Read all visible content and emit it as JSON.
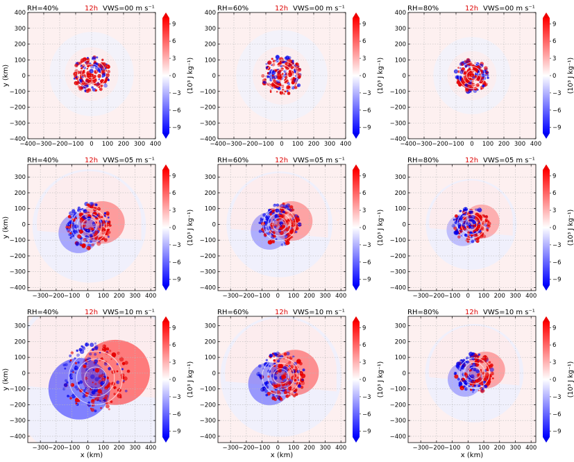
{
  "colors": {
    "header_time": "#dd0000",
    "text": "#000000",
    "grid": "#b8b8b8",
    "cmap_neg": "#0000ff",
    "cmap_mid": "#ffffff",
    "cmap_pos": "#ff0000",
    "bg_pos": "#fdf0f0",
    "bg_neg": "#eef0fc"
  },
  "figure": {
    "time_label": "12h",
    "xlabel": "x (km)",
    "ylabel": "y (km)",
    "colorbar_label": "(10³ J kg⁻¹)",
    "colorbar_ticks": [
      "9",
      "6",
      "3",
      "0",
      "−3",
      "−6",
      "−9"
    ]
  },
  "chart_data": [
    {
      "type": "heatmap",
      "row": 0,
      "col": 0,
      "rh": "RH=40%",
      "vws": "VWS=00 m s⁻¹",
      "xlim": [
        -400,
        400
      ],
      "ylim": [
        -400,
        400
      ],
      "xticks": [
        -400,
        -300,
        -200,
        -100,
        0,
        100,
        200,
        300,
        400
      ],
      "yticks": [
        -400,
        -300,
        -200,
        -100,
        0,
        100,
        200,
        300,
        400
      ],
      "core_radius_km": 120,
      "core_offset_km": [
        0,
        10
      ],
      "asym": 0,
      "background": "pos",
      "colorbar_range": [
        -10,
        10
      ]
    },
    {
      "type": "heatmap",
      "row": 0,
      "col": 1,
      "rh": "RH=60%",
      "vws": "VWS=00 m s⁻¹",
      "xlim": [
        -400,
        400
      ],
      "ylim": [
        -400,
        400
      ],
      "xticks": [
        -400,
        -300,
        -200,
        -100,
        0,
        100,
        200,
        300,
        400
      ],
      "yticks": [
        -400,
        -300,
        -200,
        -100,
        0,
        100,
        200,
        300,
        400
      ],
      "core_radius_km": 130,
      "core_offset_km": [
        0,
        0
      ],
      "asym": 0,
      "background": "pos",
      "colorbar_range": [
        -10,
        10
      ]
    },
    {
      "type": "heatmap",
      "row": 0,
      "col": 2,
      "rh": "RH=80%",
      "vws": "VWS=00 m s⁻¹",
      "xlim": [
        -400,
        400
      ],
      "ylim": [
        -400,
        400
      ],
      "xticks": [
        -400,
        -300,
        -200,
        -100,
        0,
        100,
        200,
        300,
        400
      ],
      "yticks": [
        -400,
        -300,
        -200,
        -100,
        0,
        100,
        200,
        300,
        400
      ],
      "core_radius_km": 110,
      "core_offset_km": [
        0,
        0
      ],
      "asym": 0,
      "background": "pos",
      "colorbar_range": [
        -10,
        10
      ]
    },
    {
      "type": "heatmap",
      "row": 1,
      "col": 0,
      "rh": "RH=40%",
      "vws": "VWS=05 m s⁻¹",
      "xlim": [
        -380,
        430
      ],
      "ylim": [
        -420,
        380
      ],
      "xticks": [
        -300,
        -200,
        -100,
        0,
        100,
        200,
        300,
        400
      ],
      "yticks": [
        -400,
        -300,
        -200,
        -100,
        0,
        100,
        200,
        300
      ],
      "core_radius_km": 150,
      "core_offset_km": [
        10,
        -10
      ],
      "asym": 0.5,
      "background": "mixed",
      "colorbar_range": [
        -10,
        10
      ]
    },
    {
      "type": "heatmap",
      "row": 1,
      "col": 1,
      "rh": "RH=60%",
      "vws": "VWS=05 m s⁻¹",
      "xlim": [
        -380,
        430
      ],
      "ylim": [
        -420,
        380
      ],
      "xticks": [
        -300,
        -200,
        -100,
        0,
        100,
        200,
        300,
        400
      ],
      "yticks": [
        -400,
        -300,
        -200,
        -100,
        0,
        100,
        200,
        300
      ],
      "core_radius_km": 140,
      "core_offset_km": [
        10,
        0
      ],
      "asym": 0.4,
      "background": "mixed",
      "colorbar_range": [
        -10,
        10
      ]
    },
    {
      "type": "heatmap",
      "row": 1,
      "col": 2,
      "rh": "RH=80%",
      "vws": "VWS=05 m s⁻¹",
      "xlim": [
        -380,
        430
      ],
      "ylim": [
        -420,
        380
      ],
      "xticks": [
        -300,
        -200,
        -100,
        0,
        100,
        200,
        300,
        400
      ],
      "yticks": [
        -400,
        -300,
        -200,
        -100,
        0,
        100,
        200,
        300
      ],
      "core_radius_km": 120,
      "core_offset_km": [
        20,
        0
      ],
      "asym": 0.2,
      "background": "mixed",
      "colorbar_range": [
        -10,
        10
      ]
    },
    {
      "type": "heatmap",
      "row": 2,
      "col": 0,
      "rh": "RH=40%",
      "vws": "VWS=10 m s⁻¹",
      "xlim": [
        -380,
        430
      ],
      "ylim": [
        -440,
        360
      ],
      "xticks": [
        -300,
        -200,
        -100,
        0,
        100,
        200,
        300,
        400
      ],
      "yticks": [
        -400,
        -300,
        -200,
        -100,
        0,
        100,
        200,
        300
      ],
      "core_radius_km": 230,
      "core_offset_km": [
        50,
        -30
      ],
      "asym": 1,
      "background": "mixed",
      "colorbar_range": [
        -10,
        10
      ]
    },
    {
      "type": "heatmap",
      "row": 2,
      "col": 1,
      "rh": "RH=60%",
      "vws": "VWS=10 m s⁻¹",
      "xlim": [
        -380,
        430
      ],
      "ylim": [
        -440,
        360
      ],
      "xticks": [
        -300,
        -200,
        -100,
        0,
        100,
        200,
        300,
        400
      ],
      "yticks": [
        -400,
        -300,
        -200,
        -100,
        0,
        100,
        200,
        300
      ],
      "core_radius_km": 160,
      "core_offset_km": [
        20,
        -20
      ],
      "asym": 0.7,
      "background": "mixed",
      "colorbar_range": [
        -10,
        10
      ]
    },
    {
      "type": "heatmap",
      "row": 2,
      "col": 2,
      "rh": "RH=80%",
      "vws": "VWS=10 m s⁻¹",
      "xlim": [
        -380,
        430
      ],
      "ylim": [
        -440,
        360
      ],
      "xticks": [
        -300,
        -200,
        -100,
        0,
        100,
        200,
        300,
        400
      ],
      "yticks": [
        -400,
        -300,
        -200,
        -100,
        0,
        100,
        200,
        300
      ],
      "core_radius_km": 130,
      "core_offset_km": [
        40,
        0
      ],
      "asym": 0.4,
      "background": "mixed",
      "colorbar_range": [
        -10,
        10
      ]
    }
  ]
}
